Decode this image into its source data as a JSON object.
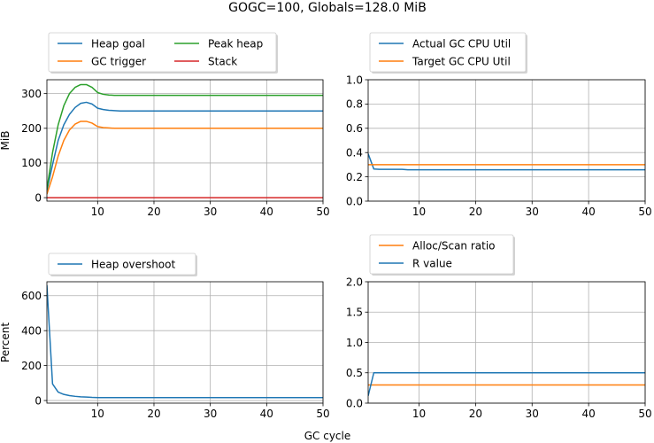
{
  "figure": {
    "title": "GOGC=100, Globals=128.0 MiB",
    "xlabel": "GC cycle"
  },
  "colors": {
    "blue": "#1f77b4",
    "orange": "#ff7f0e",
    "green": "#2ca02c",
    "red": "#d62728",
    "grid": "#b0b0b0"
  },
  "chart_data": [
    {
      "type": "line",
      "id": "heap",
      "ylabel": "MiB",
      "xlim": [
        1,
        50
      ],
      "ylim": [
        -10,
        340
      ],
      "xticks": [
        10,
        20,
        30,
        40,
        50
      ],
      "yticks": [
        0,
        100,
        200,
        300
      ],
      "grid": true,
      "legend_position": "above",
      "series": [
        {
          "name": "Heap goal",
          "color": "blue",
          "x": [
            1,
            2,
            3,
            4,
            5,
            6,
            7,
            8,
            9,
            10,
            11,
            12,
            13,
            14,
            15,
            16,
            20,
            30,
            40,
            50
          ],
          "y": [
            20,
            95,
            165,
            210,
            240,
            260,
            272,
            275,
            270,
            258,
            254,
            252,
            251,
            250,
            250,
            250,
            250,
            250,
            250,
            250
          ]
        },
        {
          "name": "GC trigger",
          "color": "orange",
          "x": [
            1,
            2,
            3,
            4,
            5,
            6,
            7,
            8,
            9,
            10,
            11,
            12,
            13,
            14,
            15,
            16,
            20,
            30,
            40,
            50
          ],
          "y": [
            10,
            60,
            120,
            165,
            195,
            212,
            220,
            220,
            215,
            205,
            202,
            201,
            200,
            200,
            200,
            200,
            200,
            200,
            200,
            200
          ]
        },
        {
          "name": "Peak heap",
          "color": "green",
          "x": [
            1,
            2,
            3,
            4,
            5,
            6,
            7,
            8,
            9,
            10,
            11,
            12,
            13,
            14,
            15,
            16,
            20,
            30,
            40,
            50
          ],
          "y": [
            25,
            130,
            210,
            265,
            300,
            318,
            326,
            326,
            318,
            303,
            298,
            296,
            295,
            295,
            295,
            295,
            295,
            295,
            295,
            295
          ]
        },
        {
          "name": "Stack",
          "color": "red",
          "x": [
            1,
            50
          ],
          "y": [
            0,
            0
          ]
        }
      ]
    },
    {
      "type": "line",
      "id": "cpu",
      "ylabel": "",
      "xlim": [
        1,
        50
      ],
      "ylim": [
        0,
        1
      ],
      "xticks": [
        10,
        20,
        30,
        40,
        50
      ],
      "yticks": [
        0.0,
        0.2,
        0.4,
        0.6,
        0.8,
        1.0
      ],
      "ytick_labels": [
        "0.0",
        "0.2",
        "0.4",
        "0.6",
        "0.8",
        "1.0"
      ],
      "grid": true,
      "legend_position": "above",
      "series": [
        {
          "name": "Actual GC CPU Util",
          "color": "blue",
          "x": [
            1,
            2,
            3,
            5,
            7,
            8,
            9,
            50
          ],
          "y": [
            0.39,
            0.265,
            0.262,
            0.262,
            0.262,
            0.258,
            0.258,
            0.258
          ]
        },
        {
          "name": "Target GC CPU Util",
          "color": "orange",
          "x": [
            1,
            50
          ],
          "y": [
            0.3,
            0.3
          ]
        }
      ]
    },
    {
      "type": "line",
      "id": "overshoot",
      "ylabel": "Percent",
      "xlim": [
        1,
        50
      ],
      "ylim": [
        -15,
        680
      ],
      "xticks": [
        10,
        20,
        30,
        40,
        50
      ],
      "yticks": [
        0,
        200,
        400,
        600
      ],
      "grid": true,
      "legend_position": "above",
      "series": [
        {
          "name": "Heap overshoot",
          "color": "blue",
          "x": [
            1,
            2,
            3,
            4,
            5,
            6,
            7,
            8,
            9,
            10,
            12,
            15,
            20,
            30,
            40,
            50
          ],
          "y": [
            660,
            95,
            48,
            35,
            28,
            24,
            21,
            20,
            18,
            17,
            17,
            17,
            17,
            17,
            17,
            17
          ]
        }
      ]
    },
    {
      "type": "line",
      "id": "ratio",
      "ylabel": "",
      "xlim": [
        1,
        50
      ],
      "ylim": [
        0,
        2
      ],
      "xticks": [
        10,
        20,
        30,
        40,
        50
      ],
      "yticks": [
        0.0,
        0.5,
        1.0,
        1.5,
        2.0
      ],
      "ytick_labels": [
        "0.0",
        "0.5",
        "1.0",
        "1.5",
        "2.0"
      ],
      "grid": true,
      "legend_position": "above",
      "series": [
        {
          "name": "Alloc/Scan ratio",
          "color": "orange",
          "x": [
            1,
            50
          ],
          "y": [
            0.3,
            0.3
          ]
        },
        {
          "name": "R value",
          "color": "blue",
          "x": [
            1,
            2,
            50
          ],
          "y": [
            0.12,
            0.5,
            0.5
          ]
        }
      ]
    }
  ]
}
